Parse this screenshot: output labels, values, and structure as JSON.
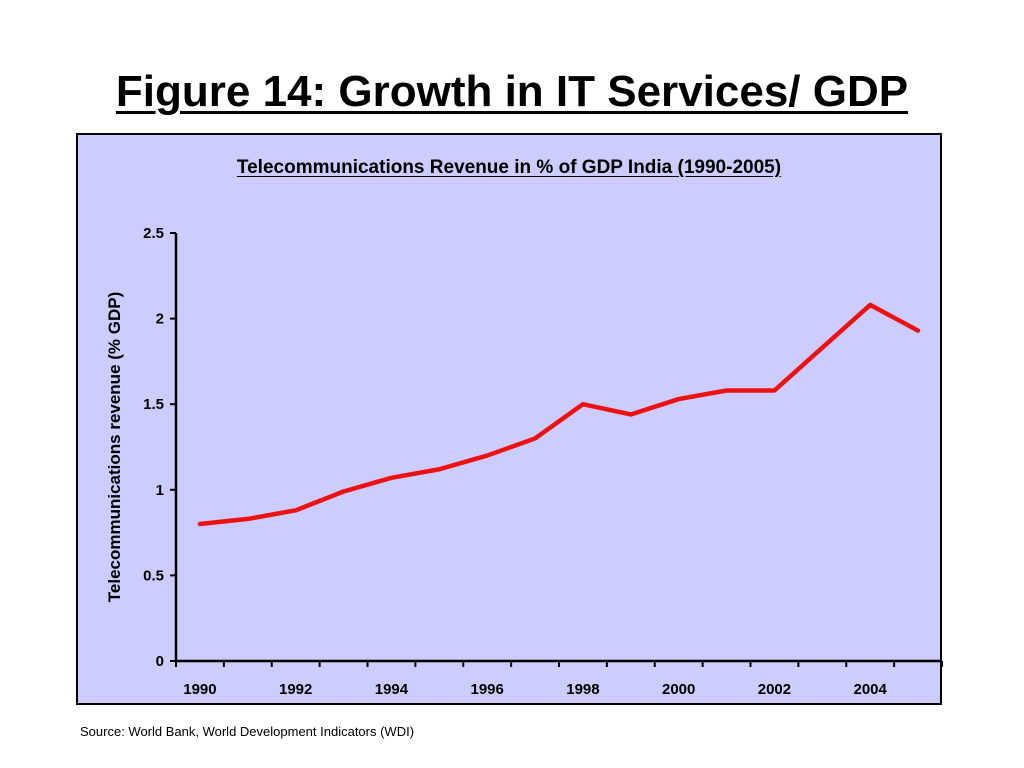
{
  "slide": {
    "title": "Figure 14: Growth in IT Services/ GDP",
    "source": "Source: World Bank, World Development Indicators (WDI)"
  },
  "colors": {
    "plot_background": "#ccccff",
    "line": "#ee1111",
    "axis": "#000000"
  },
  "chart_data": {
    "type": "line",
    "title": "Telecommunications Revenue in % of GDP India (1990-2005)",
    "xlabel": "",
    "ylabel": "Telecommunications revenue (% GDP)",
    "x": [
      1990,
      1991,
      1992,
      1993,
      1994,
      1995,
      1996,
      1997,
      1998,
      1999,
      2000,
      2001,
      2002,
      2003,
      2004,
      2005
    ],
    "series": [
      {
        "values": [
          0.8,
          0.83,
          0.88,
          0.99,
          1.07,
          1.12,
          1.2,
          1.3,
          1.5,
          1.44,
          1.53,
          1.58,
          1.58,
          1.83,
          2.08,
          1.93
        ]
      }
    ],
    "x_tick_labels": [
      "1990",
      "1992",
      "1994",
      "1996",
      "1998",
      "2000",
      "2002",
      "2004"
    ],
    "y_ticks": [
      "0",
      "0.5",
      "1",
      "1.5",
      "2",
      "2.5"
    ],
    "ylim": [
      0,
      2.5
    ],
    "grid": false,
    "legend": "none"
  }
}
